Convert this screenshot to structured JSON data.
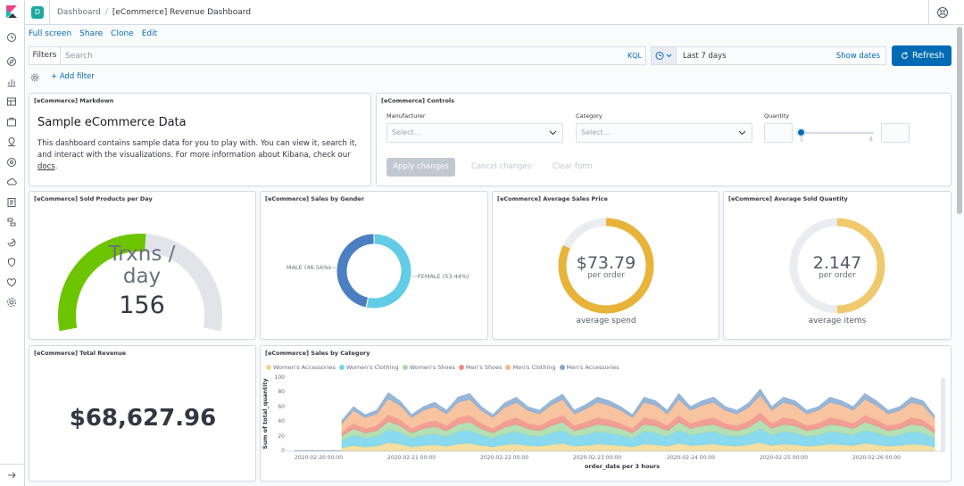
{
  "header": {
    "space_initial": "D",
    "breadcrumbs": [
      "Dashboard",
      "[eCommerce] Revenue Dashboard"
    ]
  },
  "top_menu": [
    "Full screen",
    "Share",
    "Clone",
    "Edit"
  ],
  "query_bar": {
    "filters_label": "Filters",
    "search_placeholder": "Search",
    "language": "KQL",
    "time_range": "Last 7 days",
    "show_dates": "Show dates",
    "refresh": "Refresh",
    "add_filter": "+ Add filter"
  },
  "panels": {
    "markdown": {
      "title": "[eCommerce] Markdown",
      "heading": "Sample eCommerce Data",
      "body_text": "This dashboard contains sample data for you to play with. You can view it, search it, and interact with the visualizations. For more information about Kibana, check our",
      "link_text": "docs",
      "body_end": "."
    },
    "controls": {
      "title": "[eCommerce] Controls",
      "manufacturer_label": "Manufacturer",
      "manufacturer_placeholder": "Select...",
      "category_label": "Category",
      "category_placeholder": "Select...",
      "quantity_label": "Quantity",
      "quantity_min": "1",
      "quantity_max": "8",
      "apply": "Apply changes",
      "cancel": "Cancel changes",
      "clear": "Clear form"
    },
    "sold_per_day": {
      "title": "[eCommerce] Sold Products per Day",
      "label_line1": "Trxns /",
      "label_line2": "day",
      "value": "156",
      "fraction": 0.52,
      "color": "#6dc400"
    },
    "sales_gender": {
      "title": "[eCommerce] Sales by Gender"
    },
    "avg_price": {
      "title": "[eCommerce] Average Sales Price",
      "value": "$73.79",
      "unit": "per order",
      "caption": "average spend",
      "fraction": 0.82,
      "color": "#e7b338"
    },
    "avg_quantity": {
      "title": "[eCommerce] Average Sold Quantity",
      "value": "2.147",
      "unit": "per order",
      "caption": "average items",
      "fraction": 0.5,
      "color": "#f0c96e"
    },
    "total_revenue": {
      "title": "[eCommerce] Total Revenue",
      "value": "$68,627.96"
    },
    "sales_category": {
      "title": "[eCommerce] Sales by Category"
    }
  },
  "chart_data": [
    {
      "type": "pie",
      "donut": true,
      "title": "",
      "slices": [
        {
          "label": "MALE (46.56%)",
          "value": 46.56,
          "color": "#4b7fc1"
        },
        {
          "label": "FEMALE (53.44%)",
          "value": 53.44,
          "color": "#62cce6"
        }
      ]
    },
    {
      "type": "area",
      "stacked": true,
      "title": "",
      "xlabel": "order_date per 3 hours",
      "ylabel": "Sum of total_quantity",
      "ylim": [
        0,
        100
      ],
      "yticks": [
        0,
        20,
        40,
        60,
        80,
        100
      ],
      "x_tick_labels": [
        "2020-02-20 00:00",
        "2020-02-21 00:00",
        "2020-02-22 00:00",
        "2020-02-23 00:00",
        "2020-02-24 00:00",
        "2020-02-25 00:00",
        "2020-02-26 00:00"
      ],
      "legend_position": "top-left",
      "x": [
        "2020-02-20 12:00",
        "2020-02-20 15:00",
        "2020-02-20 18:00",
        "2020-02-20 21:00",
        "2020-02-21 00:00",
        "2020-02-21 03:00",
        "2020-02-21 06:00",
        "2020-02-21 09:00",
        "2020-02-21 12:00",
        "2020-02-21 15:00",
        "2020-02-21 18:00",
        "2020-02-21 21:00",
        "2020-02-22 00:00",
        "2020-02-22 03:00",
        "2020-02-22 06:00",
        "2020-02-22 09:00",
        "2020-02-22 12:00",
        "2020-02-22 15:00",
        "2020-02-22 18:00",
        "2020-02-22 21:00",
        "2020-02-23 00:00",
        "2020-02-23 03:00",
        "2020-02-23 06:00",
        "2020-02-23 09:00",
        "2020-02-23 12:00",
        "2020-02-23 15:00",
        "2020-02-23 18:00",
        "2020-02-23 21:00",
        "2020-02-24 00:00",
        "2020-02-24 03:00",
        "2020-02-24 06:00",
        "2020-02-24 09:00",
        "2020-02-24 12:00",
        "2020-02-24 15:00",
        "2020-02-24 18:00",
        "2020-02-24 21:00",
        "2020-02-25 00:00",
        "2020-02-25 03:00",
        "2020-02-25 06:00",
        "2020-02-25 09:00",
        "2020-02-25 12:00",
        "2020-02-25 15:00",
        "2020-02-25 18:00",
        "2020-02-25 21:00",
        "2020-02-26 00:00",
        "2020-02-26 03:00",
        "2020-02-26 06:00",
        "2020-02-26 09:00",
        "2020-02-26 12:00",
        "2020-02-26 15:00",
        "2020-02-26 18:00",
        "2020-02-26 21:00"
      ],
      "series": [
        {
          "name": "Women's Accessories",
          "color": "#f3d890",
          "values": [
            5,
            8,
            6,
            7,
            12,
            10,
            6,
            8,
            9,
            7,
            10,
            11,
            8,
            6,
            9,
            10,
            8,
            7,
            9,
            11,
            7,
            8,
            10,
            9,
            8,
            6,
            10,
            9,
            7,
            11,
            8,
            9,
            10,
            8,
            7,
            9,
            12,
            8,
            10,
            9,
            7,
            8,
            10,
            9,
            8,
            11,
            9,
            7,
            8,
            10,
            9,
            6
          ]
        },
        {
          "name": "Women's Clothing",
          "color": "#76d4ec",
          "values": [
            10,
            14,
            12,
            13,
            18,
            16,
            12,
            14,
            15,
            13,
            17,
            18,
            14,
            12,
            15,
            17,
            14,
            13,
            16,
            18,
            13,
            15,
            17,
            16,
            14,
            12,
            17,
            16,
            13,
            18,
            14,
            16,
            17,
            14,
            13,
            15,
            19,
            14,
            17,
            16,
            13,
            14,
            17,
            16,
            14,
            18,
            16,
            13,
            14,
            17,
            16,
            12
          ]
        },
        {
          "name": "Women's Shoes",
          "color": "#a7dba6",
          "values": [
            6,
            9,
            7,
            8,
            11,
            9,
            7,
            9,
            10,
            8,
            10,
            11,
            9,
            7,
            9,
            10,
            9,
            8,
            10,
            11,
            8,
            9,
            10,
            10,
            9,
            7,
            10,
            10,
            8,
            11,
            9,
            10,
            10,
            9,
            8,
            9,
            12,
            9,
            10,
            10,
            8,
            9,
            10,
            10,
            9,
            11,
            10,
            8,
            9,
            10,
            10,
            7
          ]
        },
        {
          "name": "Men's Shoes",
          "color": "#ef8d85",
          "values": [
            5,
            7,
            6,
            7,
            9,
            8,
            6,
            7,
            8,
            7,
            9,
            9,
            7,
            6,
            8,
            9,
            7,
            7,
            8,
            9,
            7,
            8,
            9,
            8,
            7,
            6,
            9,
            8,
            7,
            9,
            7,
            8,
            9,
            7,
            7,
            8,
            10,
            7,
            9,
            8,
            7,
            7,
            9,
            8,
            7,
            9,
            8,
            7,
            7,
            9,
            8,
            6
          ]
        },
        {
          "name": "Men's Clothing",
          "color": "#f7b88e",
          "values": [
            12,
            18,
            15,
            16,
            22,
            20,
            15,
            18,
            19,
            16,
            21,
            22,
            18,
            15,
            19,
            21,
            18,
            16,
            20,
            22,
            16,
            18,
            21,
            20,
            18,
            15,
            21,
            20,
            16,
            22,
            18,
            20,
            21,
            18,
            16,
            19,
            24,
            18,
            21,
            20,
            16,
            18,
            21,
            20,
            18,
            22,
            20,
            16,
            18,
            21,
            20,
            14
          ]
        },
        {
          "name": "Men's Accessories",
          "color": "#86aad1",
          "values": [
            4,
            5,
            4,
            5,
            8,
            6,
            4,
            5,
            6,
            5,
            7,
            8,
            5,
            4,
            6,
            7,
            5,
            5,
            6,
            7,
            5,
            6,
            7,
            6,
            5,
            4,
            7,
            6,
            5,
            8,
            5,
            6,
            7,
            5,
            5,
            6,
            8,
            5,
            7,
            6,
            5,
            5,
            7,
            6,
            5,
            8,
            6,
            5,
            5,
            7,
            6,
            4
          ]
        }
      ]
    }
  ]
}
